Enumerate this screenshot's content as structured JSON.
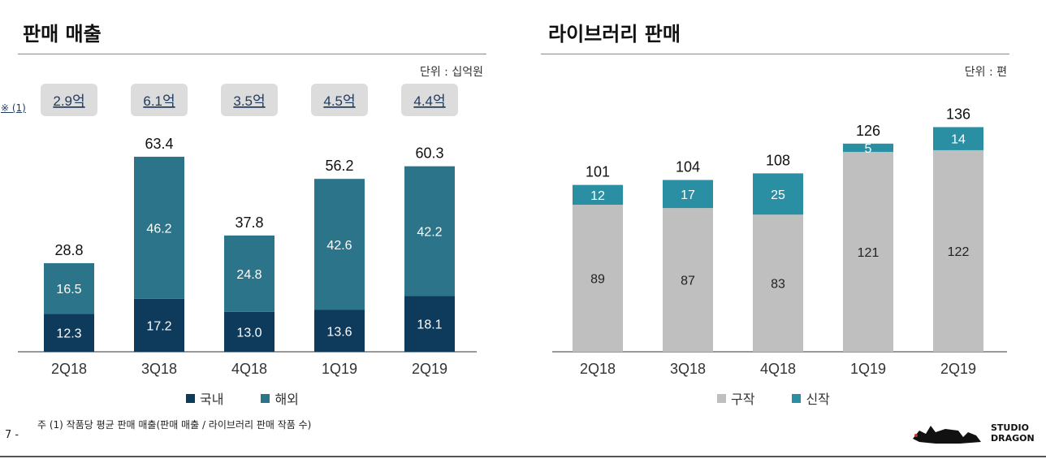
{
  "chart_data": [
    {
      "type": "bar",
      "stacked": true,
      "title": "판매 매출",
      "unit_label": "단위 : 십억원",
      "categories": [
        "2Q18",
        "3Q18",
        "4Q18",
        "1Q19",
        "2Q19"
      ],
      "series": [
        {
          "name": "국내",
          "color": "#0e3a5c",
          "values": [
            12.3,
            17.2,
            13.0,
            13.6,
            18.1
          ],
          "labels": [
            "12.3",
            "17.2",
            "13.0",
            "13.6",
            "18.1"
          ]
        },
        {
          "name": "해외",
          "color": "#2b7489",
          "values": [
            16.5,
            46.2,
            24.8,
            42.6,
            42.2
          ],
          "labels": [
            "16.5",
            "46.2",
            "24.8",
            "42.6",
            "42.2"
          ]
        }
      ],
      "totals": [
        "28.8",
        "63.4",
        "37.8",
        "56.2",
        "60.3"
      ],
      "annotation_marker": "※ (1)",
      "annotations": [
        "2.9억",
        "6.1억",
        "3.5억",
        "4.5억",
        "4.4억"
      ],
      "ylim": [
        0,
        75
      ],
      "legend_position": "bottom"
    },
    {
      "type": "bar",
      "stacked": true,
      "title": "라이브러리 판매",
      "unit_label": "단위 : 편",
      "categories": [
        "2Q18",
        "3Q18",
        "4Q18",
        "1Q19",
        "2Q19"
      ],
      "series": [
        {
          "name": "구작",
          "color": "#bfbfbf",
          "values": [
            89,
            87,
            83,
            121,
            122
          ],
          "labels": [
            "89",
            "87",
            "83",
            "121",
            "122"
          ]
        },
        {
          "name": "신작",
          "color": "#2b8fa3",
          "values": [
            12,
            17,
            25,
            5,
            14
          ],
          "labels": [
            "12",
            "17",
            "25",
            "5",
            "14"
          ]
        }
      ],
      "totals": [
        "101",
        "104",
        "108",
        "126",
        "136"
      ],
      "ylim": [
        0,
        150
      ],
      "legend_position": "bottom"
    }
  ],
  "footnote": "주 (1) 작품당 평균 판매 매출(판매 매출 / 라이브러리 판매 작품 수)",
  "page_number": "7 -",
  "logo_text": [
    "STUDIO",
    "DRAGON"
  ]
}
